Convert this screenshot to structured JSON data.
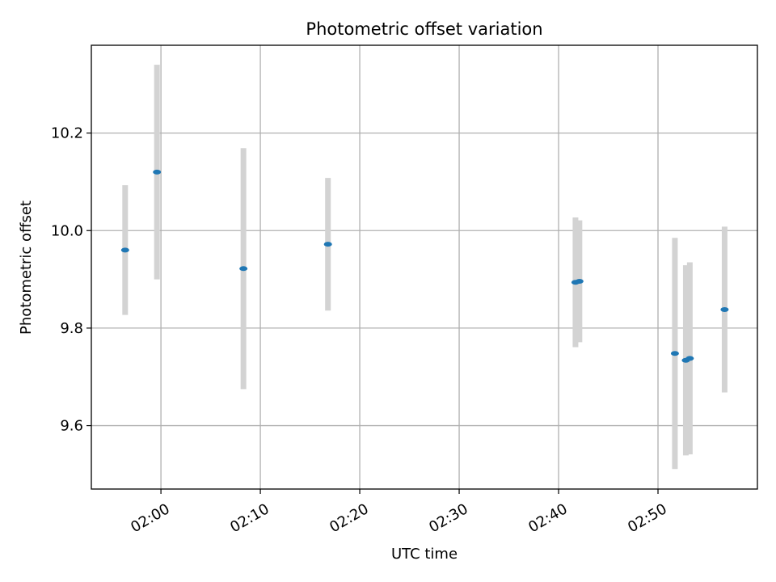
{
  "chart_data": {
    "type": "scatter",
    "title": "Photometric offset variation",
    "xlabel": "UTC time",
    "ylabel": "Photometric offset",
    "x_unit": "minutes after 02:00 UTC",
    "xlim": [
      "01:53:00",
      "03:00:00"
    ],
    "ylim": [
      9.47,
      10.38
    ],
    "x_ticks": [
      "02:00",
      "02:10",
      "02:20",
      "02:30",
      "02:40",
      "02:50"
    ],
    "y_ticks": [
      "9.6",
      "9.8",
      "10.0",
      "10.2"
    ],
    "grid": true,
    "colors": {
      "marker": "#1f77b4",
      "errorbar": "#d3d3d3",
      "grid": "#b0b0b0"
    },
    "points": [
      {
        "t": "01:56:24",
        "y": 9.96,
        "err": 0.133
      },
      {
        "t": "01:59:36",
        "y": 10.12,
        "err": 0.22
      },
      {
        "t": "02:08:18",
        "y": 9.922,
        "err": 0.247
      },
      {
        "t": "02:16:48",
        "y": 9.972,
        "err": 0.136
      },
      {
        "t": "02:41:42",
        "y": 9.894,
        "err": 0.133
      },
      {
        "t": "02:42:06",
        "y": 9.896,
        "err": 0.125
      },
      {
        "t": "02:51:42",
        "y": 9.748,
        "err": 0.237
      },
      {
        "t": "02:52:48",
        "y": 9.734,
        "err": 0.195
      },
      {
        "t": "02:53:12",
        "y": 9.738,
        "err": 0.197
      },
      {
        "t": "02:56:42",
        "y": 9.838,
        "err": 0.17
      }
    ]
  }
}
